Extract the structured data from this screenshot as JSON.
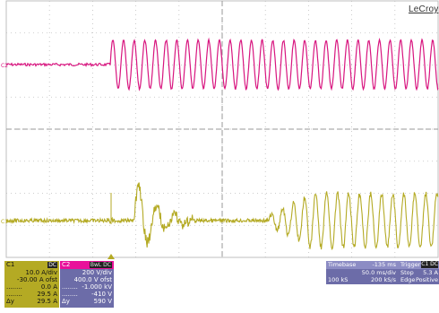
{
  "brand": "LeCroy",
  "colors": {
    "ch1": "#b4aa24",
    "ch2": "#d8157f",
    "grid": "#bfbfbf",
    "panel": "#6c6ca8"
  },
  "channels": {
    "ch2_marker": "C2",
    "ch1_marker": "C1"
  },
  "ch1_panel": {
    "name": "C1",
    "coupling": "DC",
    "vdiv": "10.0 A/div",
    "offset": "-30.00 A ofst",
    "cursor1_label": "........",
    "cursor1_value": "0.0 A",
    "cursor2_label": "........",
    "cursor2_value": "29.5 A",
    "delta_label": "Δy",
    "delta_value": "29.5 A"
  },
  "ch2_panel": {
    "name": "C2",
    "coupling": "BwL DC",
    "vdiv": "200 V/div",
    "offset": "400.0 V ofst",
    "cursor1_label": "........",
    "cursor1_value": "-1.000 kV",
    "cursor2_label": "........",
    "cursor2_value": "-410 V",
    "delta_label": "Δy",
    "delta_value": "590 V"
  },
  "timebase": {
    "label": "Timebase",
    "delay": "-135 ms",
    "tdiv": "50.0 ms/div",
    "samples": "100 kS",
    "rate": "200 kS/s"
  },
  "trigger": {
    "label": "Trigger",
    "channel": "C1 DC",
    "mode": "Stop",
    "level": "5.3 A",
    "type": "Edge",
    "slope": "Positive"
  }
}
